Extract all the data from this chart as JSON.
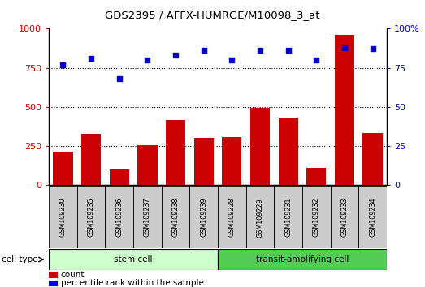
{
  "title": "GDS2395 / AFFX-HUMRGE/M10098_3_at",
  "samples": [
    "GSM109230",
    "GSM109235",
    "GSM109236",
    "GSM109237",
    "GSM109238",
    "GSM109239",
    "GSM109228",
    "GSM109229",
    "GSM109231",
    "GSM109232",
    "GSM109233",
    "GSM109234"
  ],
  "counts": [
    215,
    330,
    100,
    255,
    415,
    300,
    305,
    495,
    430,
    110,
    960,
    335
  ],
  "percentile_ranks": [
    77,
    81,
    68,
    80,
    83,
    86,
    80,
    86,
    86,
    80,
    88,
    87
  ],
  "stem_color_light": "#ccffcc",
  "transit_color_dark": "#55cc55",
  "bar_color": "#cc0000",
  "dot_color": "#0000cc",
  "ylim_left": [
    0,
    1000
  ],
  "ylim_right": [
    0,
    100
  ],
  "yticks_left": [
    0,
    250,
    500,
    750,
    1000
  ],
  "yticks_right": [
    0,
    25,
    50,
    75,
    100
  ],
  "tick_label_bg": "#cccccc",
  "grid_yticks": [
    250,
    500,
    750
  ]
}
